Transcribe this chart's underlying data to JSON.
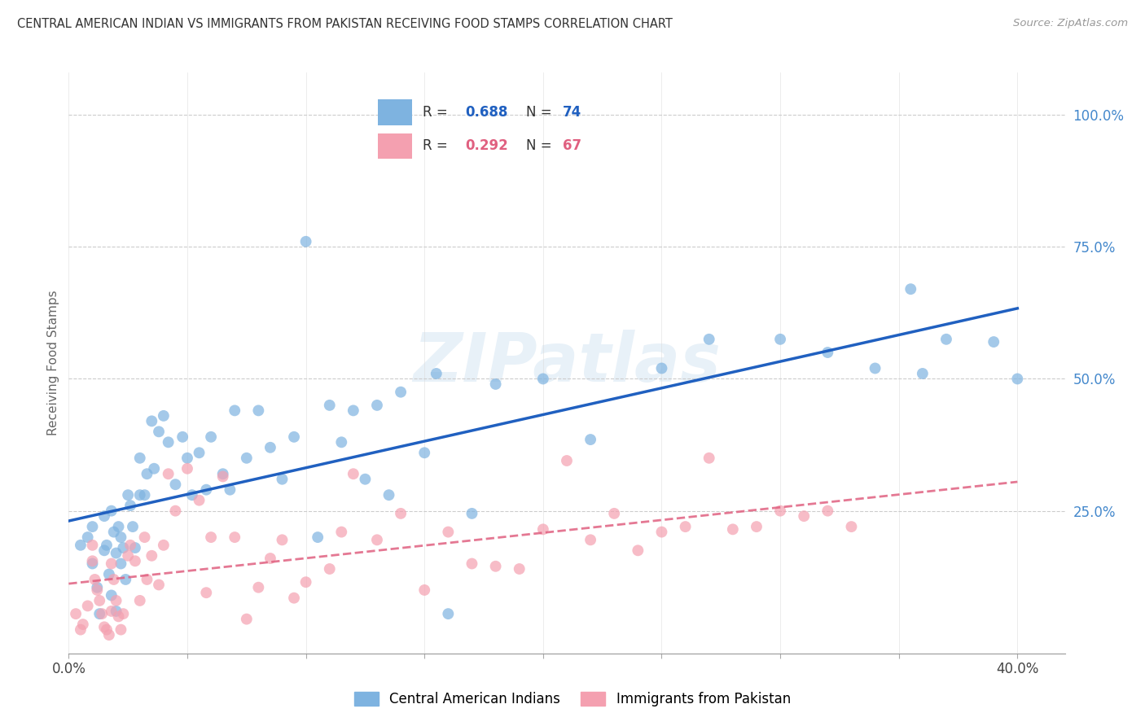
{
  "title": "CENTRAL AMERICAN INDIAN VS IMMIGRANTS FROM PAKISTAN RECEIVING FOOD STAMPS CORRELATION CHART",
  "source": "Source: ZipAtlas.com",
  "ylabel": "Receiving Food Stamps",
  "xlim": [
    0.0,
    0.42
  ],
  "ylim": [
    -0.02,
    1.08
  ],
  "watermark": "ZIPatlas",
  "blue_color": "#7eb3e0",
  "pink_color": "#f4a0b0",
  "blue_line_color": "#2060c0",
  "pink_line_color": "#e06080",
  "ytick_values": [
    0.25,
    0.5,
    0.75,
    1.0
  ],
  "ytick_labels": [
    "25.0%",
    "50.0%",
    "75.0%",
    "100.0%"
  ],
  "xtick_values": [
    0.0,
    0.05,
    0.1,
    0.15,
    0.2,
    0.25,
    0.3,
    0.35,
    0.4
  ],
  "blue_scatter_x": [
    0.005,
    0.008,
    0.01,
    0.01,
    0.012,
    0.013,
    0.015,
    0.015,
    0.016,
    0.017,
    0.018,
    0.018,
    0.019,
    0.02,
    0.02,
    0.021,
    0.022,
    0.022,
    0.023,
    0.024,
    0.025,
    0.026,
    0.027,
    0.028,
    0.03,
    0.03,
    0.032,
    0.033,
    0.035,
    0.036,
    0.038,
    0.04,
    0.042,
    0.045,
    0.048,
    0.05,
    0.052,
    0.055,
    0.058,
    0.06,
    0.065,
    0.068,
    0.07,
    0.075,
    0.08,
    0.085,
    0.09,
    0.095,
    0.1,
    0.105,
    0.11,
    0.115,
    0.12,
    0.125,
    0.13,
    0.135,
    0.14,
    0.15,
    0.155,
    0.16,
    0.17,
    0.18,
    0.2,
    0.22,
    0.25,
    0.27,
    0.3,
    0.32,
    0.34,
    0.355,
    0.36,
    0.37,
    0.39,
    0.4
  ],
  "blue_scatter_y": [
    0.185,
    0.2,
    0.22,
    0.15,
    0.105,
    0.055,
    0.24,
    0.175,
    0.185,
    0.13,
    0.25,
    0.09,
    0.21,
    0.17,
    0.06,
    0.22,
    0.2,
    0.15,
    0.18,
    0.12,
    0.28,
    0.26,
    0.22,
    0.18,
    0.35,
    0.28,
    0.28,
    0.32,
    0.42,
    0.33,
    0.4,
    0.43,
    0.38,
    0.3,
    0.39,
    0.35,
    0.28,
    0.36,
    0.29,
    0.39,
    0.32,
    0.29,
    0.44,
    0.35,
    0.44,
    0.37,
    0.31,
    0.39,
    0.76,
    0.2,
    0.45,
    0.38,
    0.44,
    0.31,
    0.45,
    0.28,
    0.475,
    0.36,
    0.51,
    0.055,
    0.245,
    0.49,
    0.5,
    0.385,
    0.52,
    0.575,
    0.575,
    0.55,
    0.52,
    0.67,
    0.51,
    0.575,
    0.57,
    0.5
  ],
  "pink_scatter_x": [
    0.003,
    0.005,
    0.006,
    0.008,
    0.01,
    0.01,
    0.011,
    0.012,
    0.013,
    0.014,
    0.015,
    0.016,
    0.017,
    0.018,
    0.018,
    0.019,
    0.02,
    0.021,
    0.022,
    0.023,
    0.025,
    0.026,
    0.028,
    0.03,
    0.032,
    0.033,
    0.035,
    0.038,
    0.04,
    0.042,
    0.045,
    0.05,
    0.055,
    0.058,
    0.06,
    0.065,
    0.07,
    0.075,
    0.08,
    0.085,
    0.09,
    0.095,
    0.1,
    0.11,
    0.115,
    0.12,
    0.13,
    0.14,
    0.15,
    0.16,
    0.17,
    0.18,
    0.19,
    0.2,
    0.21,
    0.22,
    0.23,
    0.24,
    0.25,
    0.26,
    0.27,
    0.28,
    0.29,
    0.3,
    0.31,
    0.32,
    0.33
  ],
  "pink_scatter_y": [
    0.055,
    0.025,
    0.035,
    0.07,
    0.185,
    0.155,
    0.12,
    0.1,
    0.08,
    0.055,
    0.03,
    0.025,
    0.015,
    0.06,
    0.15,
    0.12,
    0.08,
    0.05,
    0.025,
    0.055,
    0.165,
    0.185,
    0.155,
    0.08,
    0.2,
    0.12,
    0.165,
    0.11,
    0.185,
    0.32,
    0.25,
    0.33,
    0.27,
    0.095,
    0.2,
    0.315,
    0.2,
    0.045,
    0.105,
    0.16,
    0.195,
    0.085,
    0.115,
    0.14,
    0.21,
    0.32,
    0.195,
    0.245,
    0.1,
    0.21,
    0.15,
    0.145,
    0.14,
    0.215,
    0.345,
    0.195,
    0.245,
    0.175,
    0.21,
    0.22,
    0.35,
    0.215,
    0.22,
    0.25,
    0.24,
    0.25,
    0.22
  ]
}
